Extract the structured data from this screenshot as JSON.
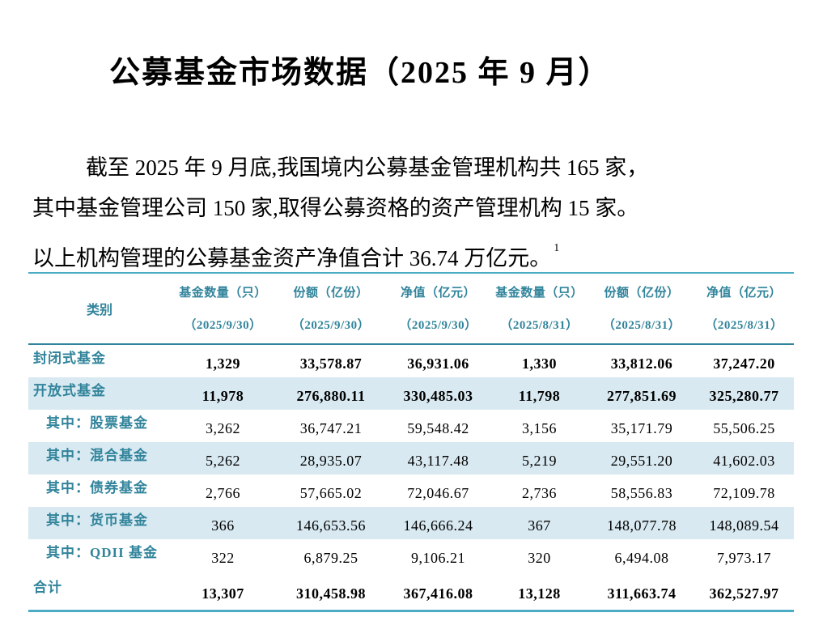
{
  "doc": {
    "title": "公募基金市场数据（2025 年 9 月）",
    "paragraph_lines": [
      "截至 2025 年 9 月底,我国境内公募基金管理机构共 165 家，",
      "其中基金管理公司 150 家,取得公募资格的资产管理机构 15 家。",
      "以上机构管理的公募基金资产净值合计 36.74 万亿元。"
    ],
    "footnote_marker": "1"
  },
  "table": {
    "header": {
      "category_label": "类别",
      "columns": [
        {
          "label": "基金数量（只）",
          "date": "（2025/9/30）"
        },
        {
          "label": "份额（亿份）",
          "date": "（2025/9/30）"
        },
        {
          "label": "净值（亿元）",
          "date": "（2025/9/30）"
        },
        {
          "label": "基金数量（只）",
          "date": "（2025/8/31）"
        },
        {
          "label": "份额（亿份）",
          "date": "（2025/8/31）"
        },
        {
          "label": "净值（亿元）",
          "date": "（2025/8/31）"
        }
      ]
    },
    "rows": [
      {
        "category": "封闭式基金",
        "values": [
          "1,329",
          "33,578.87",
          "36,931.06",
          "1,330",
          "33,812.06",
          "37,247.20"
        ]
      },
      {
        "category": "开放式基金",
        "values": [
          "11,978",
          "276,880.11",
          "330,485.03",
          "11,798",
          "277,851.69",
          "325,280.77"
        ]
      },
      {
        "category": "其中：股票基金",
        "values": [
          "3,262",
          "36,747.21",
          "59,548.42",
          "3,156",
          "35,171.79",
          "55,506.25"
        ]
      },
      {
        "category": "其中：混合基金",
        "values": [
          "5,262",
          "28,935.07",
          "43,117.48",
          "5,219",
          "29,551.20",
          "41,602.03"
        ]
      },
      {
        "category": "其中：债券基金",
        "values": [
          "2,766",
          "57,665.02",
          "72,046.67",
          "2,736",
          "58,556.83",
          "72,109.78"
        ]
      },
      {
        "category": "其中：货币基金",
        "values": [
          "366",
          "146,653.56",
          "146,666.24",
          "367",
          "148,077.78",
          "148,089.54"
        ]
      },
      {
        "category": "其中：QDII 基金",
        "values": [
          "322",
          "6,879.25",
          "9,106.21",
          "320",
          "6,494.08",
          "7,973.17"
        ]
      },
      {
        "category": "合计",
        "values": [
          "13,307",
          "310,458.98",
          "367,416.08",
          "13,128",
          "311,663.74",
          "362,527.97"
        ]
      }
    ]
  },
  "colors": {
    "teal_text": "#31849B",
    "row_highlight": "#D8E9F1",
    "table_border": "#4BACC6"
  }
}
